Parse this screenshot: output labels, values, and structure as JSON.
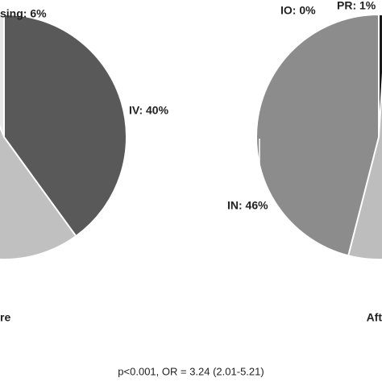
{
  "chart_data": [
    {
      "type": "pie",
      "title": "re",
      "values": [
        6,
        40
      ],
      "value_labels": [
        "sing: 6%",
        "IV: 40%"
      ],
      "colors": [
        "#e8e8e8",
        "#595959"
      ]
    },
    {
      "type": "pie",
      "title": "Aft",
      "values": [
        46,
        0,
        1
      ],
      "value_labels": [
        "IN: 46%",
        "IO: 0%",
        "PR: 1%"
      ],
      "colors": [
        "#8c8c8c",
        "#bdbdbd",
        "#1a1a1a"
      ]
    }
  ],
  "footnote": "p<0.001, OR = 3.24 (2.01-5.21)"
}
